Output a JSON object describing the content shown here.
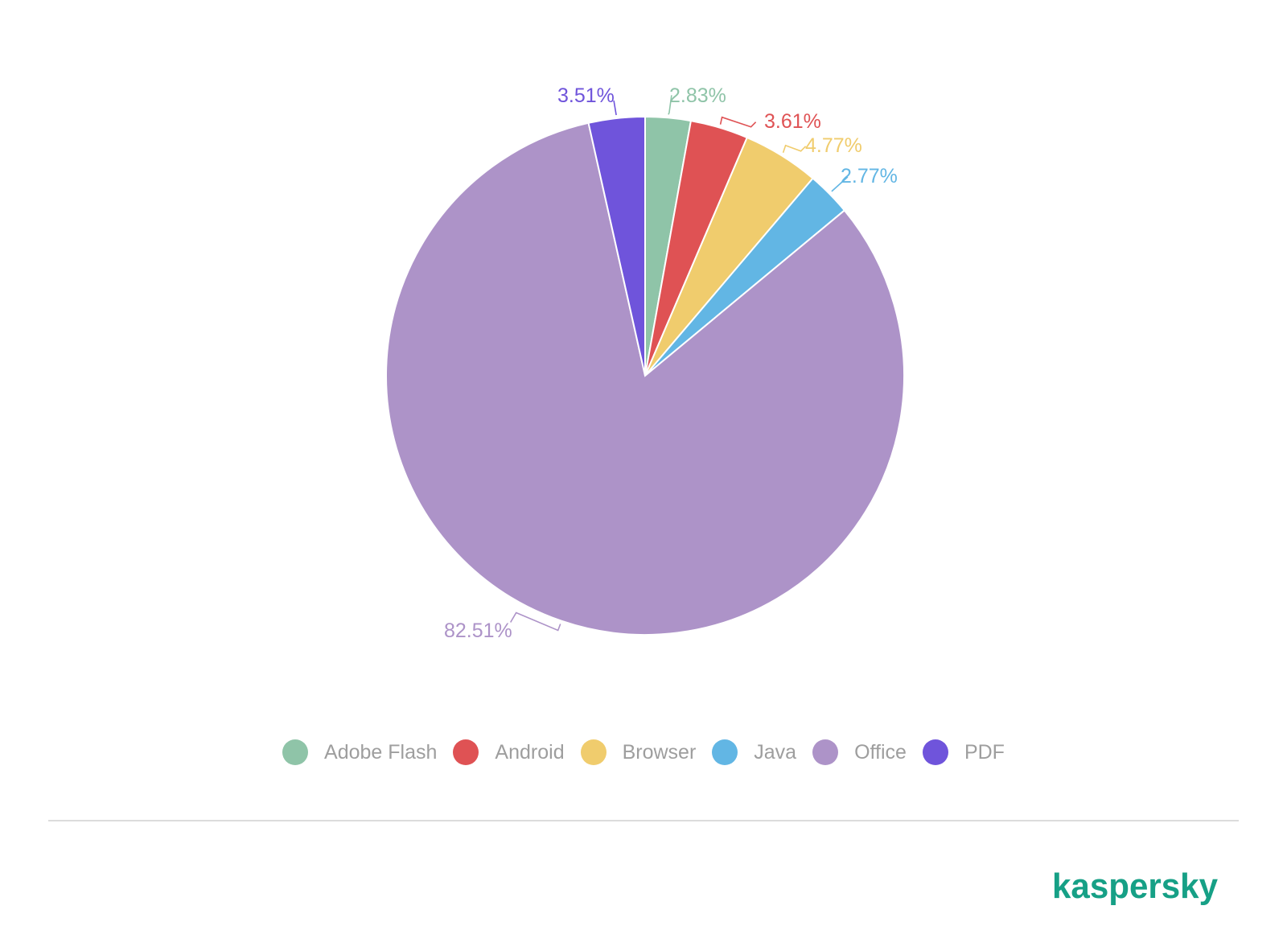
{
  "chart_data": {
    "type": "pie",
    "slices": [
      {
        "name": "Adobe Flash",
        "value": 2.83,
        "label": "2.83%",
        "color": "#8fc4a8"
      },
      {
        "name": "Android",
        "value": 3.61,
        "label": "3.61%",
        "color": "#df5254"
      },
      {
        "name": "Browser",
        "value": 4.77,
        "label": "4.77%",
        "color": "#f0cc6d"
      },
      {
        "name": "Java",
        "value": 2.77,
        "label": "2.77%",
        "color": "#62b6e4"
      },
      {
        "name": "Office",
        "value": 82.51,
        "label": "82.51%",
        "color": "#ad93c8"
      },
      {
        "name": "PDF",
        "value": 3.51,
        "label": "3.51%",
        "color": "#6f54db"
      }
    ],
    "legend_position": "bottom",
    "start": "top",
    "direction": "clockwise"
  },
  "brand": {
    "name": "kaspersky",
    "color": "#16a086"
  }
}
